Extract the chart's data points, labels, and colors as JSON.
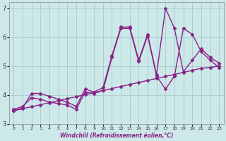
{
  "xlabel": "Windchill (Refroidissement éolien,°C)",
  "bg_color": "#cce8e8",
  "line_color": "#882288",
  "grid_color": "#aacccc",
  "xlim": [
    -0.5,
    23.5
  ],
  "ylim": [
    3.0,
    7.2
  ],
  "xticks": [
    0,
    1,
    2,
    3,
    4,
    5,
    6,
    7,
    8,
    9,
    10,
    11,
    12,
    13,
    14,
    15,
    16,
    17,
    18,
    19,
    20,
    21,
    22,
    23
  ],
  "yticks": [
    3,
    4,
    5,
    6,
    7
  ],
  "series1_x": [
    0,
    1,
    2,
    3,
    4,
    5,
    6,
    7,
    8,
    9,
    10,
    11,
    12,
    13,
    14,
    15,
    16,
    17,
    18,
    19,
    20,
    21,
    22,
    23
  ],
  "series1_y": [
    3.5,
    3.6,
    3.9,
    3.85,
    3.75,
    3.7,
    3.65,
    3.5,
    4.1,
    4.05,
    4.15,
    5.3,
    6.3,
    6.3,
    5.15,
    6.05,
    4.65,
    4.2,
    4.65,
    6.3,
    6.1,
    5.5,
    5.2,
    4.95
  ],
  "series2_x": [
    0,
    1,
    2,
    3,
    4,
    5,
    6,
    7,
    8,
    9,
    10,
    11,
    12,
    13,
    14,
    15,
    16,
    17,
    18,
    19,
    20,
    21,
    22,
    23
  ],
  "series2_y": [
    3.45,
    3.52,
    3.59,
    3.66,
    3.73,
    3.8,
    3.87,
    3.94,
    4.01,
    4.08,
    4.15,
    4.22,
    4.29,
    4.36,
    4.43,
    4.5,
    4.57,
    4.64,
    4.71,
    4.78,
    4.85,
    4.92,
    4.95,
    5.0
  ],
  "series3_x": [
    0,
    1,
    2,
    3,
    4,
    5,
    6,
    7,
    8,
    9,
    10,
    11,
    12,
    13,
    14,
    15,
    16,
    17,
    18,
    19,
    20,
    21,
    22,
    23
  ],
  "series3_y": [
    3.45,
    3.55,
    4.05,
    4.05,
    3.95,
    3.85,
    3.75,
    3.6,
    4.2,
    4.1,
    4.25,
    5.35,
    6.35,
    6.35,
    5.2,
    6.1,
    4.7,
    7.0,
    6.3,
    4.8,
    5.2,
    5.6,
    5.3,
    5.1
  ],
  "marker": "D",
  "marker_size": 2.5,
  "linewidth": 1.0
}
